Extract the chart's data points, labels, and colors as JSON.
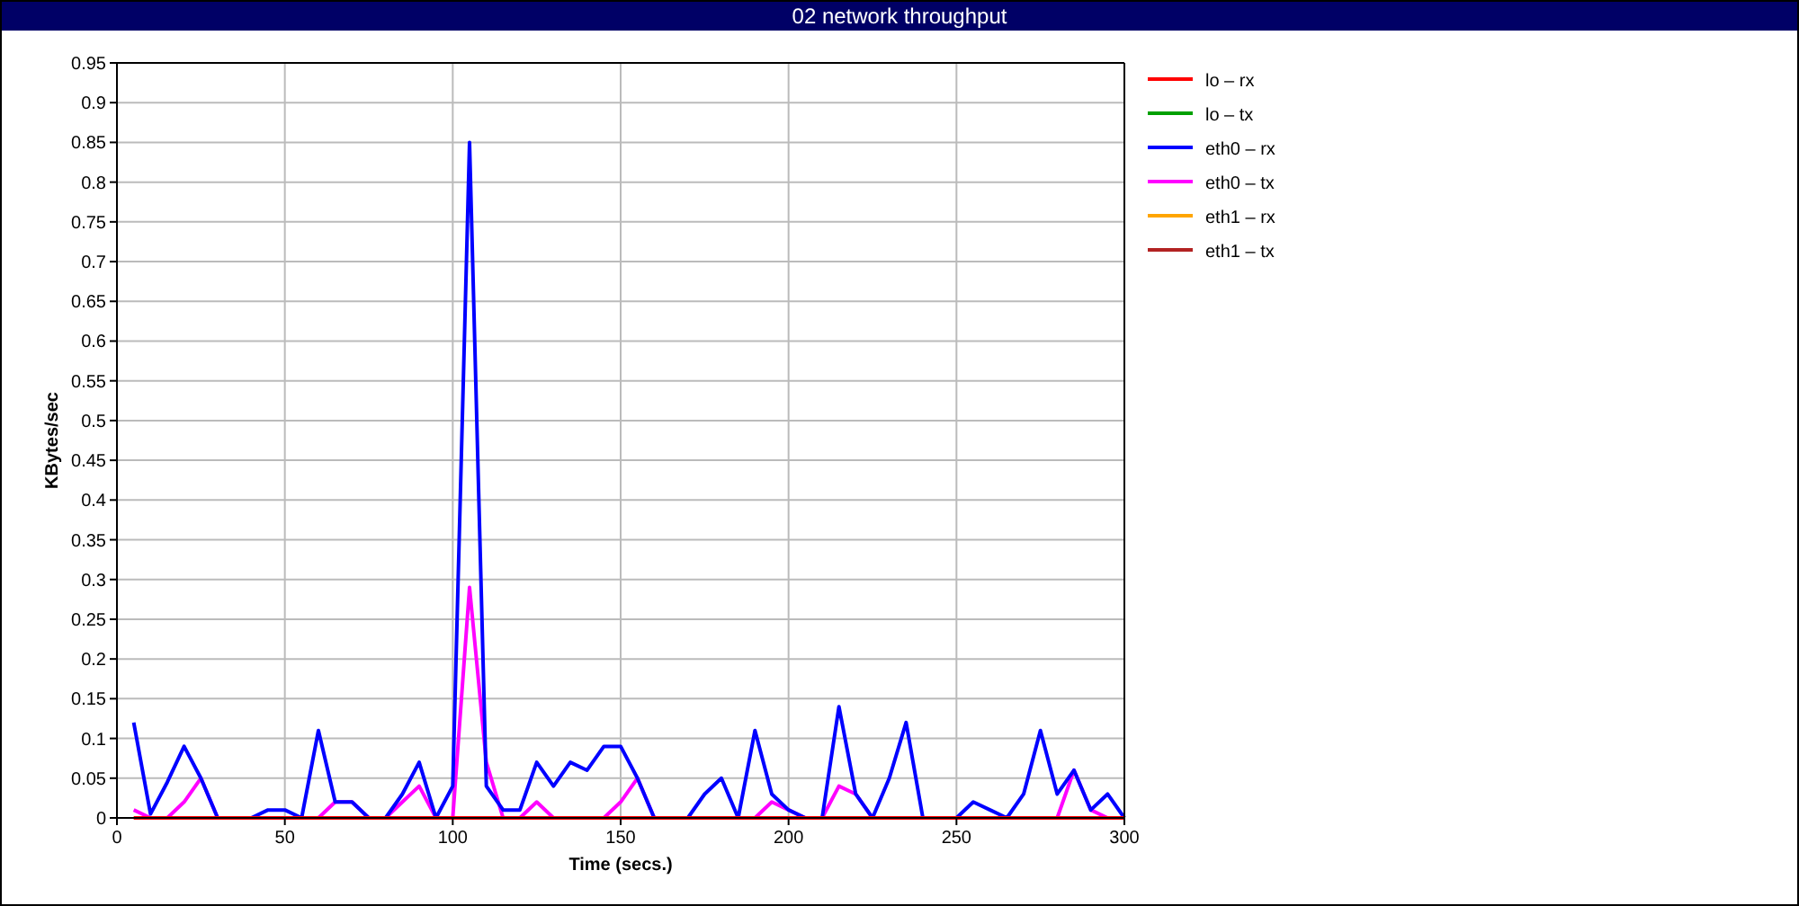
{
  "chart_data": {
    "type": "line",
    "title": "02 network throughput",
    "xlabel": "Time (secs.)",
    "ylabel": "KBytes/sec",
    "x": [
      5,
      10,
      15,
      20,
      25,
      30,
      35,
      40,
      45,
      50,
      55,
      60,
      65,
      70,
      75,
      80,
      85,
      90,
      95,
      100,
      105,
      110,
      115,
      120,
      125,
      130,
      135,
      140,
      145,
      150,
      155,
      160,
      165,
      170,
      175,
      180,
      185,
      190,
      195,
      200,
      205,
      210,
      215,
      220,
      225,
      230,
      235,
      240,
      245,
      250,
      255,
      260,
      265,
      270,
      275,
      280,
      285,
      290,
      295,
      300
    ],
    "xlim": [
      0,
      300
    ],
    "xticks": [
      0,
      50,
      100,
      150,
      200,
      250,
      300
    ],
    "ylim": [
      0,
      0.95
    ],
    "yticks": [
      0,
      0.05,
      0.1,
      0.15,
      0.2,
      0.25,
      0.3,
      0.35,
      0.4,
      0.45,
      0.5,
      0.55,
      0.6,
      0.65,
      0.7,
      0.75,
      0.8,
      0.85,
      0.9,
      0.95
    ],
    "grid": true,
    "legend": "top right",
    "marker": "none",
    "line_style": "solid",
    "series": [
      {
        "name": "lo – rx",
        "color": "#ff0000",
        "values": [
          0,
          0,
          0,
          0,
          0,
          0,
          0,
          0,
          0,
          0,
          0,
          0,
          0,
          0,
          0,
          0,
          0,
          0,
          0,
          0,
          0,
          0,
          0,
          0,
          0,
          0,
          0,
          0,
          0,
          0,
          0,
          0,
          0,
          0,
          0,
          0,
          0,
          0,
          0,
          0,
          0,
          0,
          0,
          0,
          0,
          0,
          0,
          0,
          0,
          0,
          0,
          0,
          0,
          0,
          0,
          0,
          0,
          0,
          0,
          0
        ]
      },
      {
        "name": "lo – tx",
        "color": "#00a000",
        "values": [
          null,
          null,
          null,
          null,
          null,
          null,
          null,
          null,
          null,
          null,
          null,
          null,
          null,
          null,
          null,
          null,
          null,
          null,
          null,
          null,
          null,
          null,
          null,
          null,
          null,
          null,
          null,
          null,
          null,
          null,
          null,
          null,
          null,
          null,
          null,
          null,
          null,
          null,
          null,
          null,
          null,
          null,
          null,
          null,
          null,
          null,
          null,
          null,
          null,
          null,
          null,
          null,
          null,
          null,
          null,
          null,
          null,
          null,
          null,
          null
        ]
      },
      {
        "name": "eth0 – rx",
        "color": "#0000ff",
        "values": [
          0.12,
          0.005,
          0.045,
          0.09,
          0.05,
          0,
          0,
          0,
          0.01,
          0.01,
          0,
          0.11,
          0.02,
          0.02,
          0,
          0,
          0.03,
          0.07,
          0,
          0.04,
          0.85,
          0.04,
          0.01,
          0.01,
          0.07,
          0.04,
          0.07,
          0.06,
          0.09,
          0.09,
          0.05,
          0,
          0,
          0,
          0.03,
          0.05,
          0,
          0.11,
          0.03,
          0.01,
          0,
          0,
          0.14,
          0.03,
          0,
          0.05,
          0.12,
          0,
          0,
          0,
          0.02,
          0.01,
          0,
          0.03,
          0.11,
          0.03,
          0.06,
          0.01,
          0.03,
          0
        ]
      },
      {
        "name": "eth0 – tx",
        "color": "#ff00ff",
        "values": [
          0.01,
          0,
          0,
          0.02,
          0.05,
          0,
          0,
          0,
          0,
          0,
          0,
          0,
          0.02,
          0.02,
          0,
          0,
          0.02,
          0.04,
          0,
          0,
          0.29,
          0.07,
          0,
          0,
          0.02,
          0,
          0,
          0,
          0,
          0.02,
          0.05,
          0,
          0,
          0,
          0,
          0,
          0,
          0,
          0.02,
          0.01,
          0,
          0,
          0.04,
          0.03,
          0,
          0,
          0,
          0,
          0,
          0,
          0,
          0,
          0,
          0,
          0,
          0,
          0.06,
          0.01,
          0,
          0
        ]
      },
      {
        "name": "eth1 – rx",
        "color": "#ffa500",
        "values": [
          null,
          null,
          null,
          null,
          null,
          null,
          null,
          null,
          null,
          null,
          null,
          null,
          null,
          null,
          null,
          null,
          null,
          null,
          null,
          null,
          null,
          null,
          null,
          null,
          null,
          null,
          null,
          null,
          null,
          null,
          null,
          null,
          null,
          null,
          null,
          null,
          null,
          null,
          null,
          null,
          null,
          null,
          null,
          null,
          null,
          null,
          null,
          null,
          null,
          null,
          null,
          null,
          null,
          null,
          null,
          null,
          null,
          null,
          null,
          null
        ]
      },
      {
        "name": "eth1 – tx",
        "color": "#b22222",
        "values": [
          null,
          null,
          null,
          null,
          null,
          null,
          null,
          null,
          null,
          null,
          null,
          null,
          null,
          null,
          null,
          null,
          null,
          null,
          null,
          null,
          null,
          null,
          null,
          null,
          null,
          null,
          null,
          null,
          null,
          null,
          null,
          null,
          null,
          null,
          null,
          null,
          null,
          null,
          null,
          null,
          null,
          null,
          null,
          null,
          null,
          null,
          null,
          null,
          null,
          null,
          null,
          null,
          null,
          null,
          null,
          null,
          null,
          null,
          null,
          null
        ]
      }
    ]
  }
}
